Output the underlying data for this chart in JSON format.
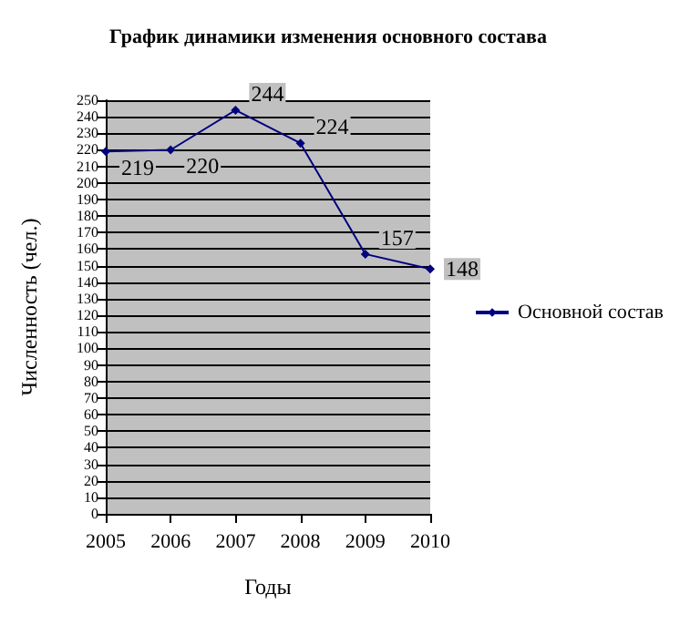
{
  "chart_data": {
    "type": "line",
    "title": "График динамики изменения основного состава",
    "xlabel": "Годы",
    "ylabel": "Численность (чел.)",
    "categories": [
      "2005",
      "2006",
      "2007",
      "2008",
      "2009",
      "2010"
    ],
    "series": [
      {
        "name": "Основной состав",
        "color": "#000080",
        "values": [
          219,
          220,
          244,
          224,
          157,
          148
        ]
      }
    ],
    "ylim": [
      0,
      250
    ],
    "yticks": [
      0,
      10,
      20,
      30,
      40,
      50,
      60,
      70,
      80,
      90,
      100,
      110,
      120,
      130,
      140,
      150,
      160,
      170,
      180,
      190,
      200,
      210,
      220,
      230,
      240,
      250
    ],
    "grid": "y",
    "legend": "right",
    "marker": "diamond",
    "line_style": "solid",
    "data_labels": true
  }
}
